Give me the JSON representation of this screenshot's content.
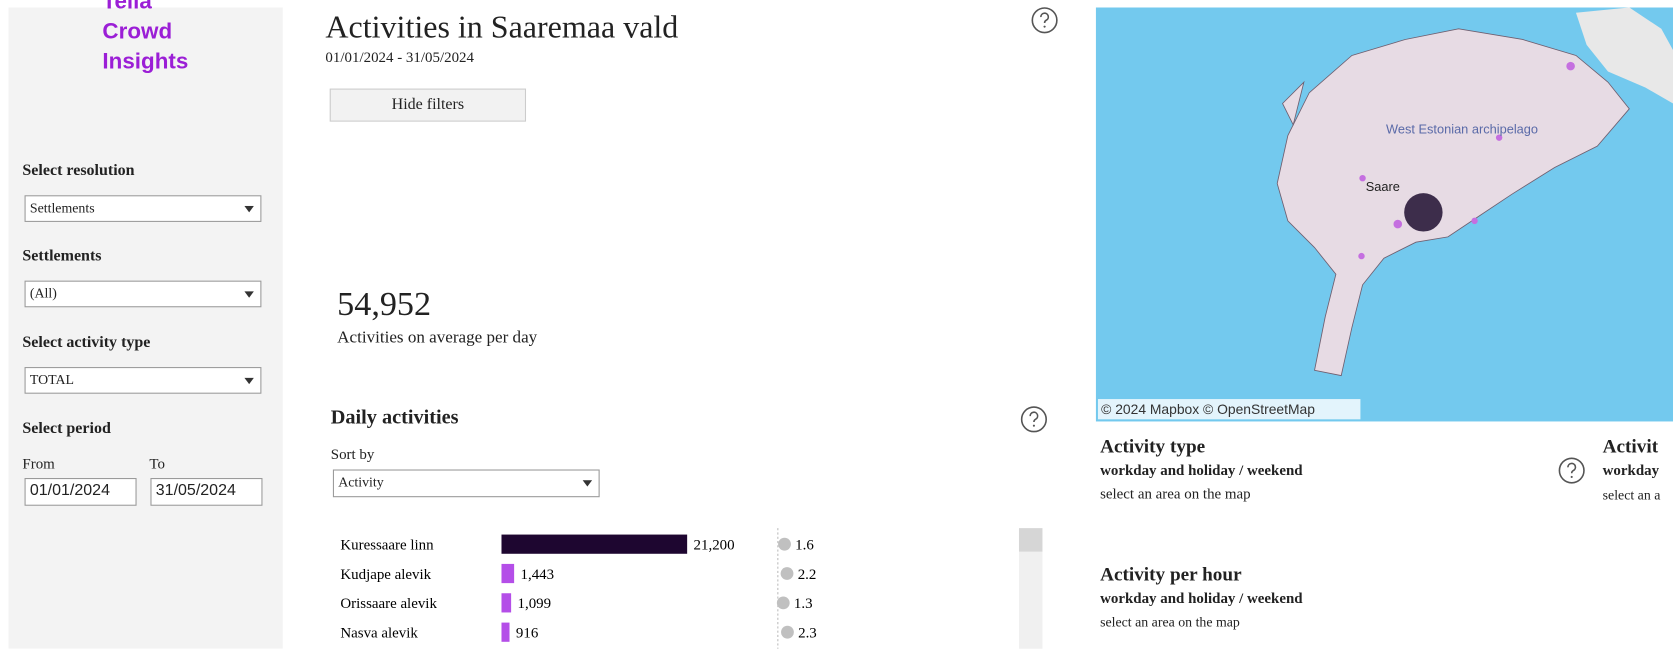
{
  "sidebar": {
    "logo": [
      "Telia",
      "Crowd",
      "Insights"
    ],
    "filters": [
      {
        "label": "Select resolution",
        "value": "Settlements"
      },
      {
        "label": "Settlements",
        "value": "(All)"
      },
      {
        "label": "Select activity type",
        "value": "TOTAL"
      }
    ],
    "period": {
      "label": "Select period",
      "from_label": "From",
      "to_label": "To",
      "from": "01/01/2024",
      "to": "31/05/2024"
    }
  },
  "header": {
    "title": "Activities in Saaremaa vald",
    "date_range": "01/01/2024 - 31/05/2024",
    "button": "Hide filters"
  },
  "kpi": {
    "value": "54,952",
    "label": "Activities on average per day"
  },
  "daily": {
    "title": "Daily activities",
    "sort_label": "Sort by",
    "sort_value": "Activity",
    "rows": [
      {
        "name": "Kuressaare linn",
        "activities": 21200,
        "activities_label": "21,200",
        "per_capita": 1.6
      },
      {
        "name": "Kudjape alevik",
        "activities": 1443,
        "activities_label": "1,443",
        "per_capita": 2.2
      },
      {
        "name": "Orissaare alevik",
        "activities": 1099,
        "activities_label": "1,099",
        "per_capita": 1.3
      },
      {
        "name": "Nasva alevik",
        "activities": 916,
        "activities_label": "916",
        "per_capita": 2.3
      }
    ]
  },
  "map": {
    "labels": [
      "West Estonian archipelago",
      "Saare"
    ],
    "attribution": "© 2024 Mapbox © OpenStreetMap"
  },
  "panels": [
    {
      "title": "Activity type",
      "subtitle": "workday  and holiday / weekend",
      "hint": "select an area on the map"
    },
    {
      "title": "Activit",
      "subtitle": "workday",
      "hint": "select an a"
    },
    {
      "title": "Activity per hour",
      "subtitle": "workday and holiday / weekend",
      "hint": "select an area on the map"
    }
  ]
}
